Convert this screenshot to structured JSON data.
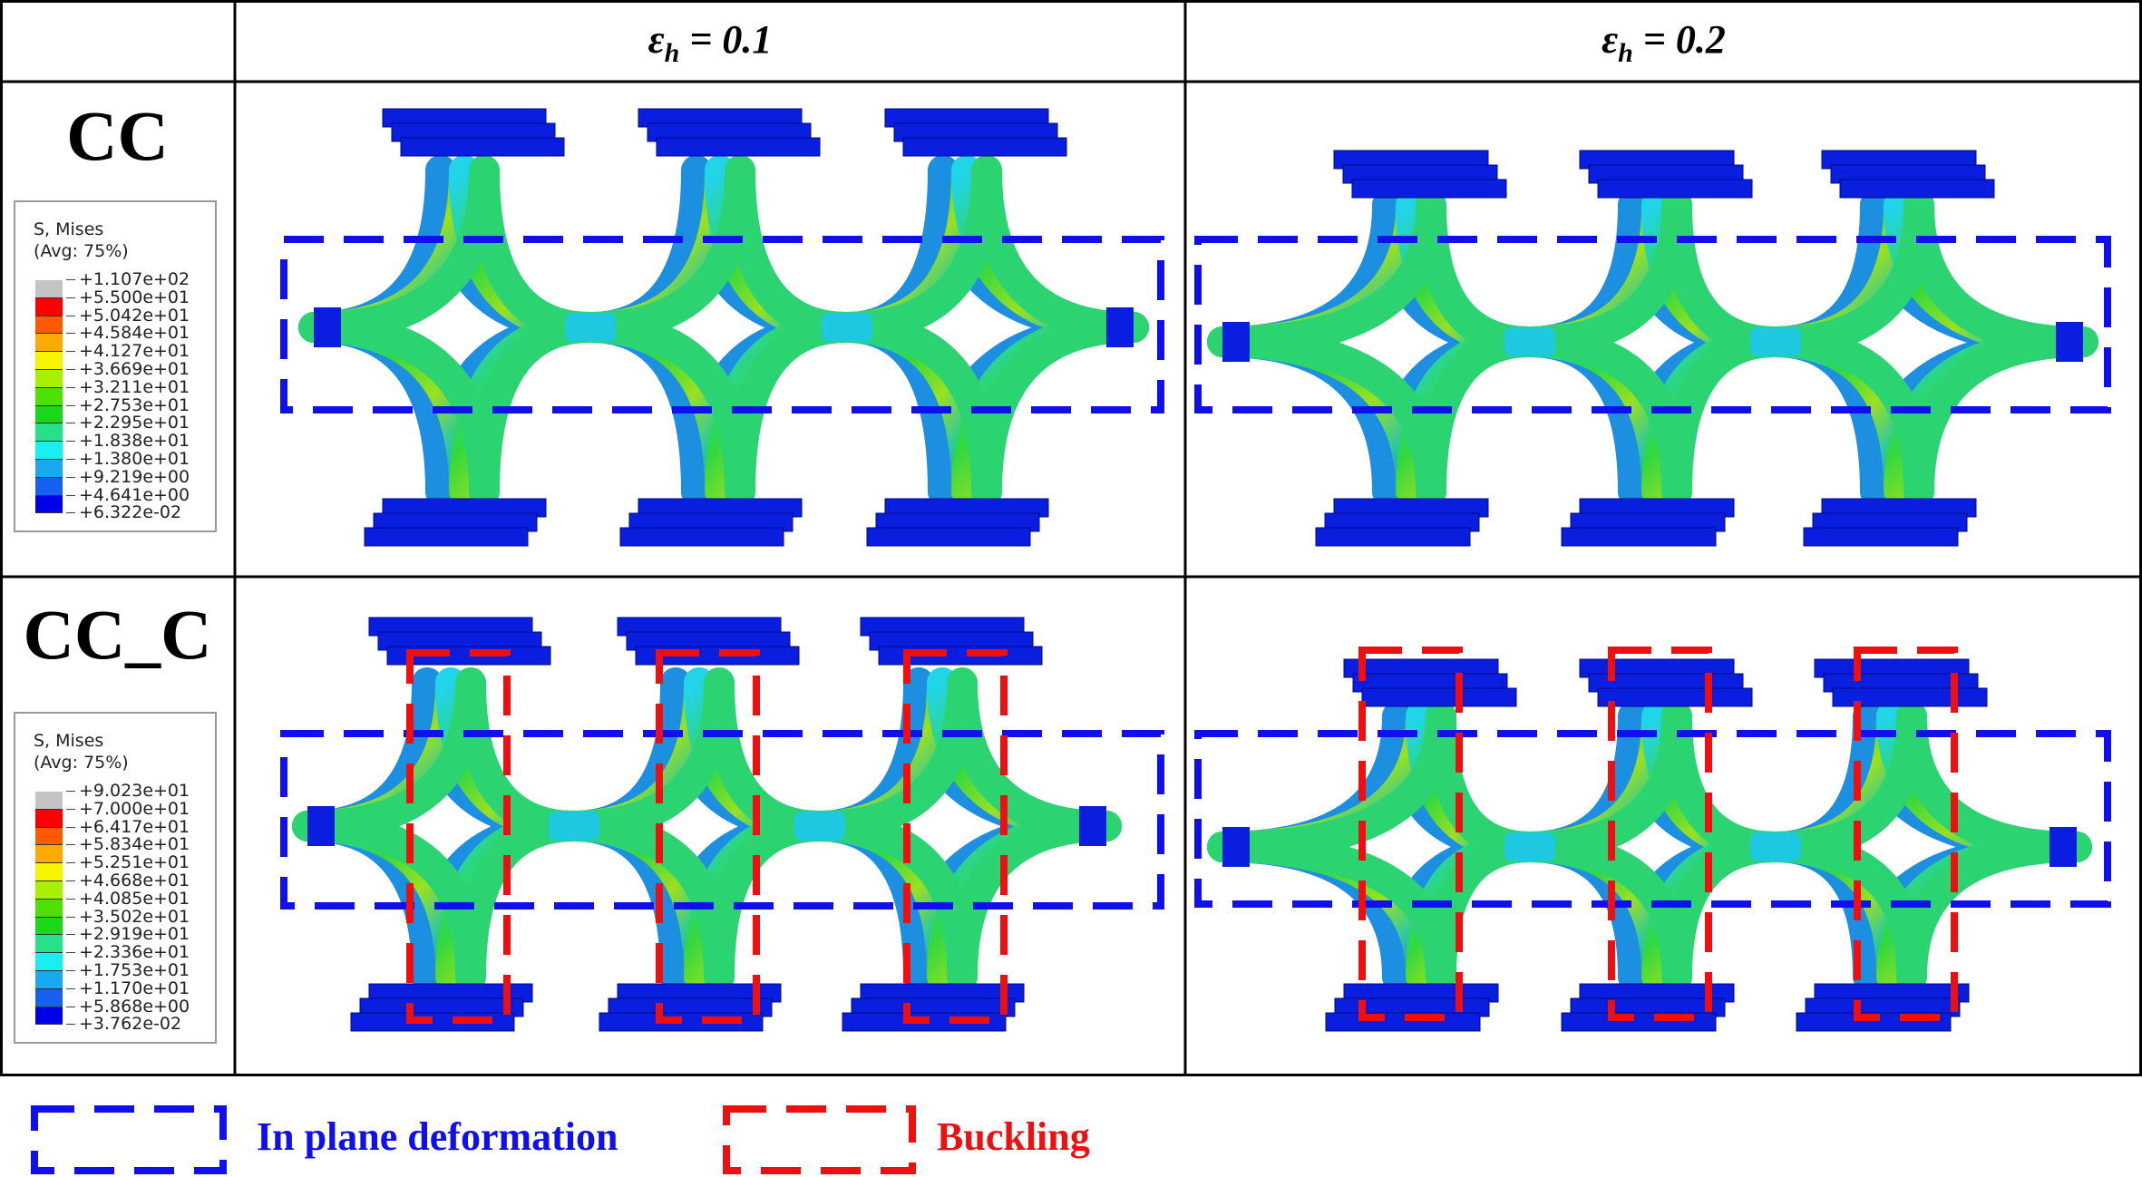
{
  "columns": [
    {
      "symbol": "ε",
      "subscript": "h",
      "value": "= 0.1"
    },
    {
      "symbol": "ε",
      "subscript": "h",
      "value": "= 0.2"
    }
  ],
  "rows": [
    {
      "label": "CC",
      "legend": {
        "title": "S, Mises",
        "subtitle": "(Avg: 75%)",
        "values": [
          "+1.107e+02",
          "+5.500e+01",
          "+5.042e+01",
          "+4.584e+01",
          "+4.127e+01",
          "+3.669e+01",
          "+3.211e+01",
          "+2.753e+01",
          "+2.295e+01",
          "+1.838e+01",
          "+1.380e+01",
          "+9.219e+00",
          "+4.641e+00",
          "+6.322e-02"
        ]
      }
    },
    {
      "label": "CC_C",
      "legend": {
        "title": "S, Mises",
        "subtitle": "(Avg: 75%)",
        "values": [
          "+9.023e+01",
          "+7.000e+01",
          "+6.417e+01",
          "+5.834e+01",
          "+5.251e+01",
          "+4.668e+01",
          "+4.085e+01",
          "+3.502e+01",
          "+2.919e+01",
          "+2.336e+01",
          "+1.753e+01",
          "+1.170e+01",
          "+5.868e+00",
          "+3.762e-02"
        ]
      }
    }
  ],
  "colorbar": [
    "#c4c4c4",
    "#ff0000",
    "#ff5a00",
    "#ffaa00",
    "#f5f500",
    "#a6f000",
    "#4ee000",
    "#18d818",
    "#26e08a",
    "#18f0f0",
    "#18aaf0",
    "#1560f0",
    "#0000e8"
  ],
  "key": {
    "in_plane": {
      "label": "In plane deformation",
      "color": "#1010ee"
    },
    "buckling": {
      "label": "Buckling",
      "color": "#ee1010"
    }
  }
}
